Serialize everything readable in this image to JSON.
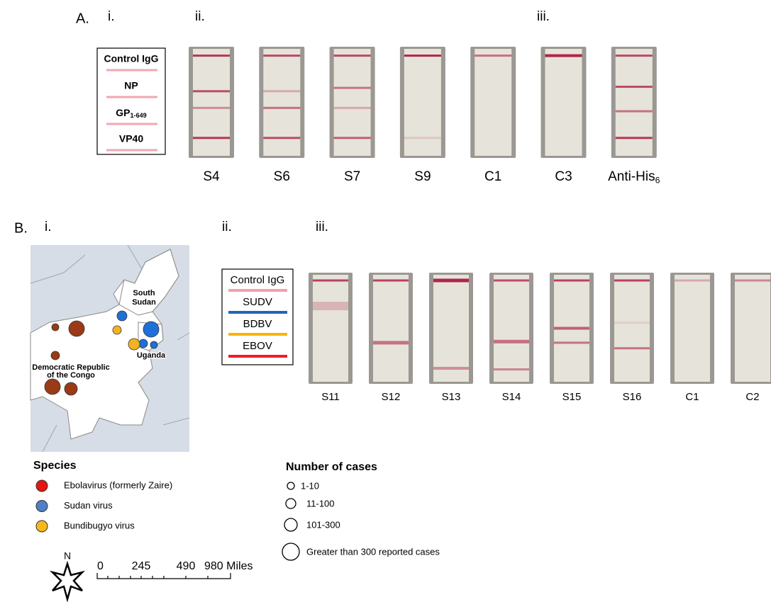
{
  "panel_a": {
    "label": "A.",
    "sub_labels": [
      "i.",
      "ii.",
      "iii."
    ],
    "legend": [
      "Control IgG",
      "NP",
      {
        "main": "GP",
        "sub": "1-649"
      },
      "VP40"
    ],
    "strips": [
      "S4",
      "S6",
      "S7",
      "S9",
      "C1",
      "C3",
      {
        "main": "Anti-His",
        "sub": "6"
      }
    ]
  },
  "panel_b": {
    "label": "B.",
    "sub_labels": [
      "i.",
      "ii.",
      "iii."
    ],
    "map_labels": [
      [
        "South",
        "Sudan"
      ],
      [
        "Uganda"
      ],
      [
        "Democratic Republic",
        "of the Congo"
      ]
    ],
    "species": {
      "title": "Species",
      "items": [
        {
          "label": "Ebolavirus (formerly Zaire)",
          "color": "#e8140f"
        },
        {
          "label": "Sudan virus",
          "color": "#4f7fc6"
        },
        {
          "label": "Bundibugyo virus",
          "color": "#f6b81a"
        }
      ]
    },
    "cases": {
      "title": "Number of cases",
      "items": [
        "1-10",
        "11-100",
        "101-300",
        "Greater than 300 reported cases"
      ]
    },
    "compass": "N",
    "scale": [
      "0",
      "245",
      "490",
      "980 Miles"
    ],
    "legend": [
      {
        "label": "Control IgG",
        "color": "#f2a0a8"
      },
      {
        "label": "SUDV",
        "color": "#1f66b8"
      },
      {
        "label": "BDBV",
        "color": "#f5b500"
      },
      {
        "label": "EBOV",
        "color": "#ee1c25"
      }
    ],
    "strips": [
      "S11",
      "S12",
      "S13",
      "S14",
      "S15",
      "S16",
      "C1",
      "C2"
    ]
  }
}
